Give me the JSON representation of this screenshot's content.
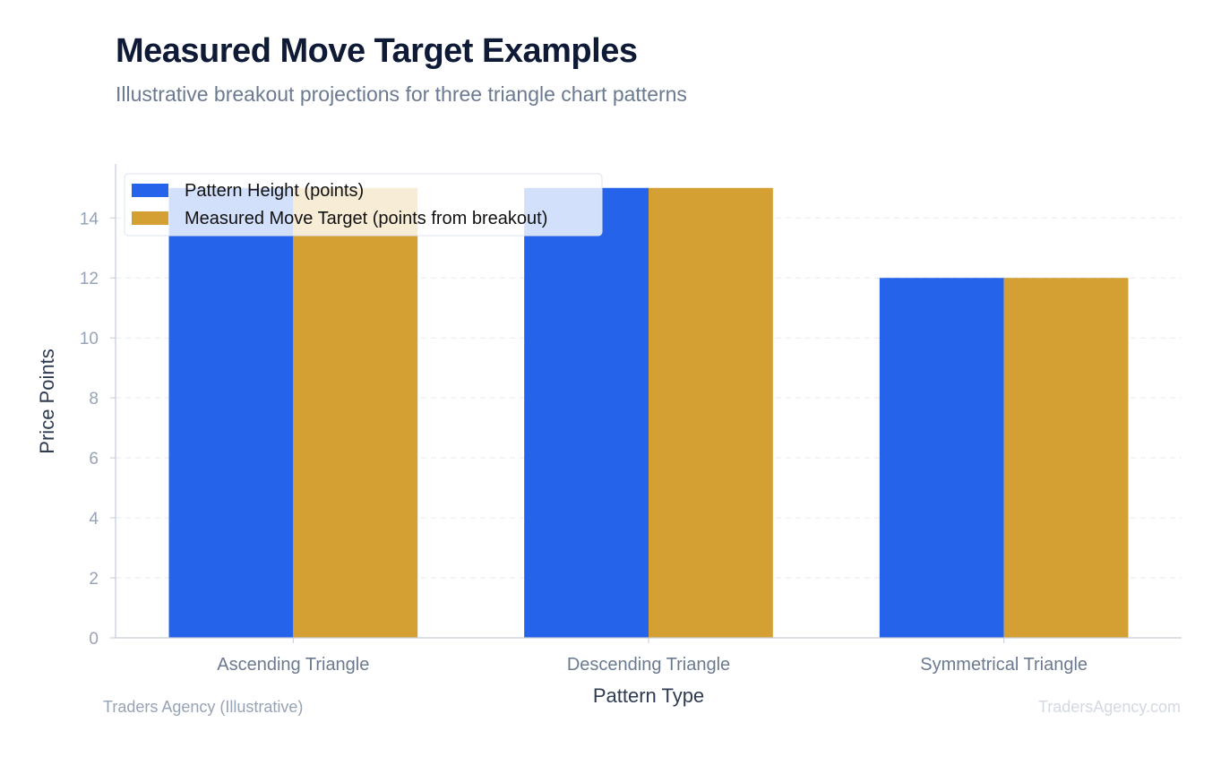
{
  "title": "Measured Move Target Examples",
  "subtitle": "Illustrative breakout projections for three triangle chart patterns",
  "footer": {
    "left": "Traders Agency (Illustrative)",
    "right": "TradersAgency.com"
  },
  "chart_data": {
    "type": "bar",
    "categories": [
      "Ascending Triangle",
      "Descending Triangle",
      "Symmetrical Triangle"
    ],
    "series": [
      {
        "name": "Pattern Height (points)",
        "values": [
          15,
          15,
          12
        ],
        "color": "#2563eb"
      },
      {
        "name": "Measured Move Target (points from breakout)",
        "values": [
          15,
          15,
          12
        ],
        "color": "#d4a033"
      }
    ],
    "xlabel": "Pattern Type",
    "ylabel": "Price Points",
    "ylim": [
      0,
      15.8
    ],
    "yticks": [
      0,
      2,
      4,
      6,
      8,
      10,
      12,
      14
    ],
    "grid": true,
    "legend_position": "top-left"
  }
}
